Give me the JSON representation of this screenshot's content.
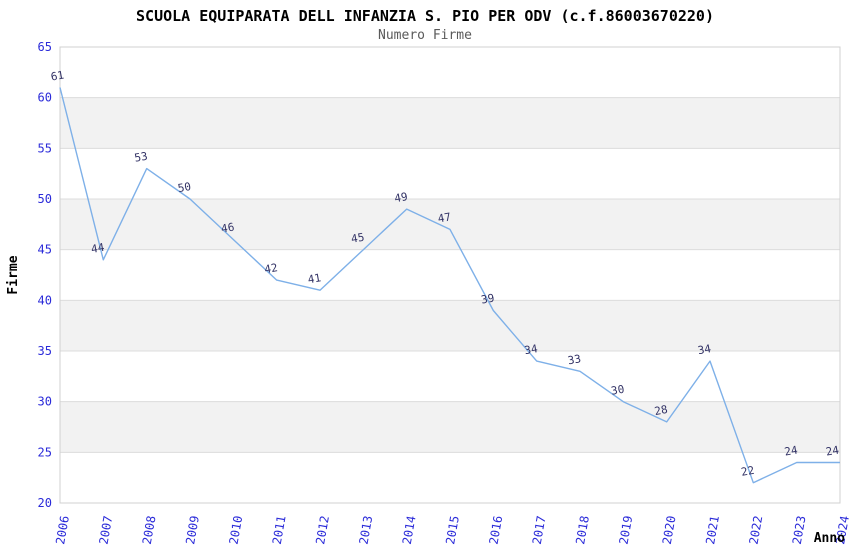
{
  "chart_data": {
    "type": "line",
    "title": "SCUOLA EQUIPARATA DELL INFANZIA S. PIO PER ODV (c.f.86003670220)",
    "subtitle": "Numero Firme",
    "xlabel": "Anno",
    "ylabel": "Firme",
    "x": [
      "2006",
      "2007",
      "2008",
      "2009",
      "2010",
      "2011",
      "2012",
      "2013",
      "2014",
      "2015",
      "2016",
      "2017",
      "2018",
      "2019",
      "2020",
      "2021",
      "2022",
      "2023",
      "2024"
    ],
    "values": [
      61,
      44,
      53,
      50,
      46,
      42,
      41,
      45,
      49,
      47,
      39,
      34,
      33,
      30,
      28,
      34,
      22,
      24,
      24
    ],
    "ylim": [
      20,
      65
    ],
    "ytick_step": 5,
    "yticks": [
      20,
      25,
      30,
      35,
      40,
      45,
      50,
      55,
      60,
      65
    ],
    "grid": true,
    "legend": "none",
    "style": {
      "line_color": "#7EB0E8",
      "point_label_color": "#333366",
      "tick_label_color": "#2B2BD9",
      "band_fill": "#F2F2F2",
      "grid_color": "#DCDCDC",
      "border_color": "#D0D0D0",
      "title_color": "#000000",
      "subtitle_color": "#5A5A5A",
      "axis_title_color": "#000000"
    }
  }
}
